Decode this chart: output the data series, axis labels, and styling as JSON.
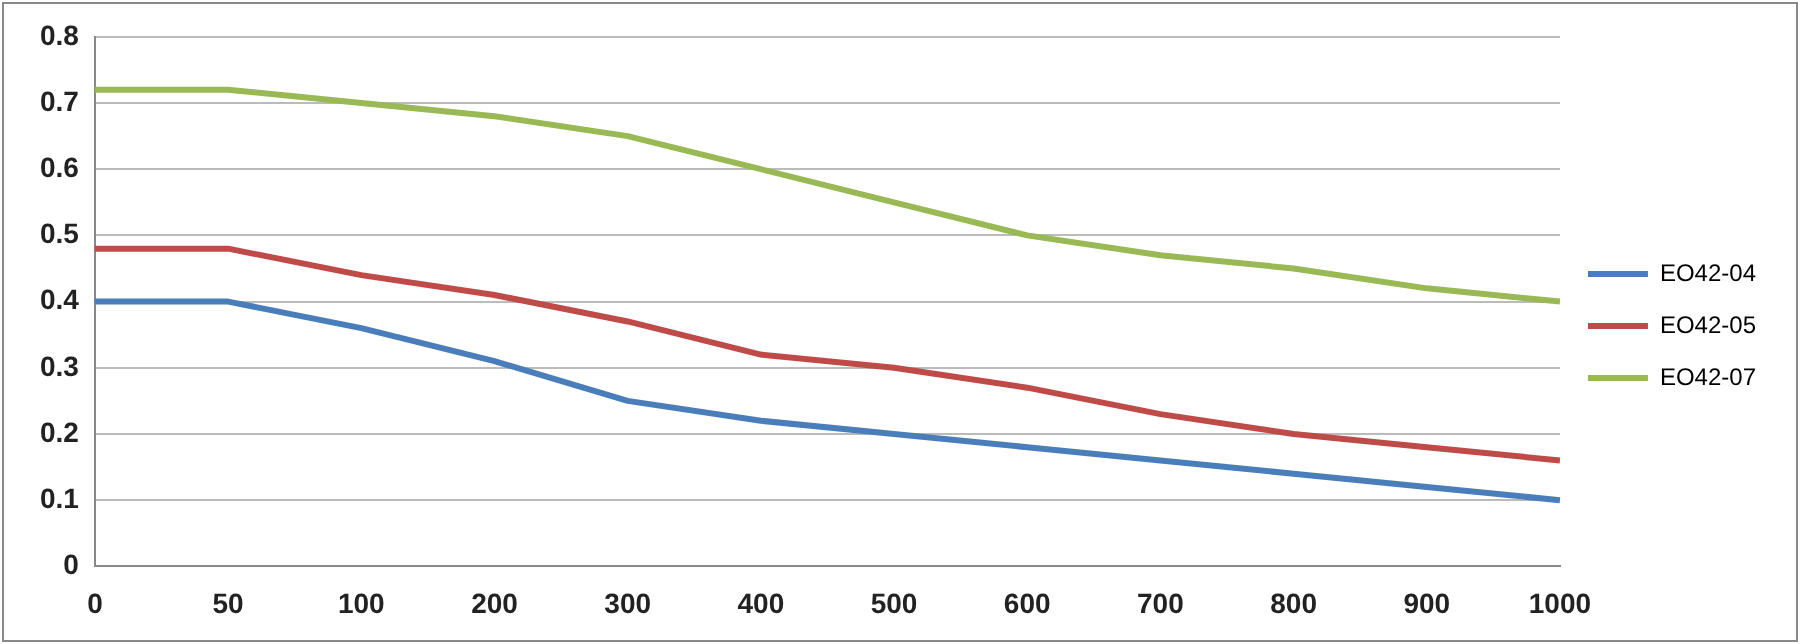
{
  "chart_data": {
    "type": "line",
    "categories": [
      "0",
      "50",
      "100",
      "200",
      "300",
      "400",
      "500",
      "600",
      "700",
      "800",
      "900",
      "1000"
    ],
    "series": [
      {
        "name": "EO42-04",
        "color": "#4a7ebb",
        "values": [
          0.4,
          0.4,
          0.36,
          0.31,
          0.25,
          0.22,
          0.2,
          0.18,
          0.16,
          0.14,
          0.12,
          0.1
        ]
      },
      {
        "name": "EO42-05",
        "color": "#be4b48",
        "values": [
          0.48,
          0.48,
          0.44,
          0.41,
          0.37,
          0.32,
          0.3,
          0.27,
          0.23,
          0.2,
          0.18,
          0.16
        ]
      },
      {
        "name": "EO42-07",
        "color": "#98b954",
        "values": [
          0.72,
          0.72,
          0.7,
          0.68,
          0.65,
          0.6,
          0.55,
          0.5,
          0.47,
          0.45,
          0.42,
          0.4
        ]
      }
    ],
    "ylim": [
      0,
      0.8
    ],
    "yticks": [
      0,
      0.1,
      0.2,
      0.3,
      0.4,
      0.5,
      0.6,
      0.7,
      0.8
    ],
    "grid": "y",
    "legend": "right",
    "marker": "none",
    "line_style": "solid"
  }
}
